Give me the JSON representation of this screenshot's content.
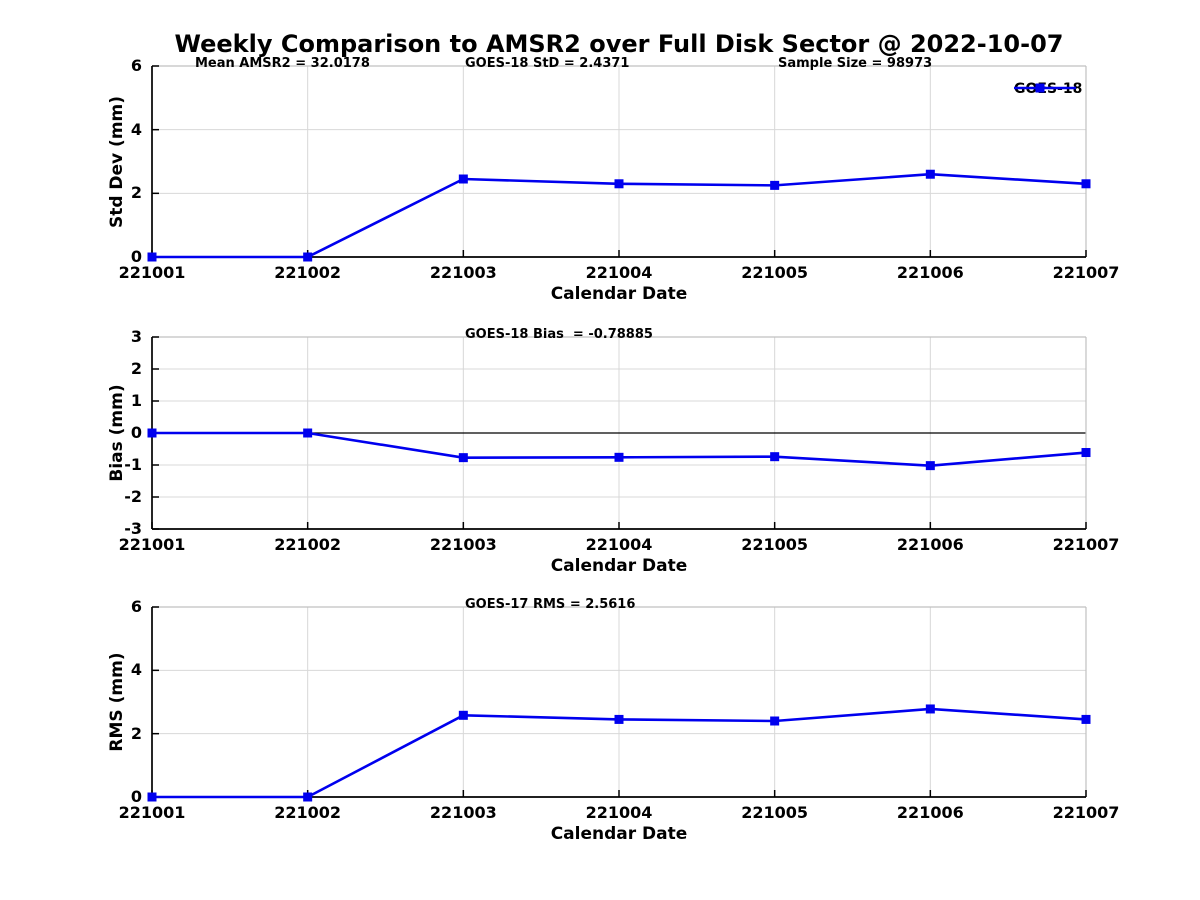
{
  "title": "Weekly Comparison to AMSR2 over Full Disk Sector @ 2022-10-07",
  "accent_color": "#0000EE",
  "chart_data": [
    {
      "type": "line",
      "name": "std-dev",
      "ylabel": "Std Dev (mm)",
      "xlabel": "Calendar Date",
      "ylim": [
        0,
        6
      ],
      "yticks": [
        0,
        2,
        4,
        6
      ],
      "categories": [
        "221001",
        "221002",
        "221003",
        "221004",
        "221005",
        "221006",
        "221007"
      ],
      "series": [
        {
          "name": "GOES-18",
          "color": "#0000EE",
          "values": [
            0,
            0,
            2.45,
            2.3,
            2.25,
            2.6,
            2.3
          ]
        }
      ],
      "annotations": [
        {
          "text": "Mean AMSR2 = 32.0178"
        },
        {
          "text": "GOES-18 StD = 2.4371"
        },
        {
          "text": "Sample Size = 98973"
        }
      ],
      "legend": {
        "label": "GOES-18",
        "position": "upper-right"
      },
      "grid": true
    },
    {
      "type": "line",
      "name": "bias",
      "ylabel": "Bias (mm)",
      "xlabel": "Calendar Date",
      "ylim": [
        -3,
        3
      ],
      "yticks": [
        -3,
        -2,
        -1,
        0,
        1,
        2,
        3
      ],
      "zero_line": true,
      "categories": [
        "221001",
        "221002",
        "221003",
        "221004",
        "221005",
        "221006",
        "221007"
      ],
      "series": [
        {
          "name": "GOES-18",
          "color": "#0000EE",
          "values": [
            0,
            0,
            -0.77,
            -0.76,
            -0.74,
            -1.02,
            -0.61
          ]
        }
      ],
      "annotations": [
        {
          "text": "GOES-18 Bias  = -0.78885"
        }
      ],
      "grid": true
    },
    {
      "type": "line",
      "name": "rms",
      "ylabel": "RMS (mm)",
      "xlabel": "Calendar Date",
      "ylim": [
        0,
        6
      ],
      "yticks": [
        0,
        2,
        4,
        6
      ],
      "categories": [
        "221001",
        "221002",
        "221003",
        "221004",
        "221005",
        "221006",
        "221007"
      ],
      "series": [
        {
          "name": "GOES-18",
          "color": "#0000EE",
          "values": [
            0,
            0,
            2.58,
            2.45,
            2.4,
            2.78,
            2.45
          ]
        }
      ],
      "annotations": [
        {
          "text": "GOES-17 RMS = 2.5616"
        }
      ],
      "grid": true
    }
  ]
}
